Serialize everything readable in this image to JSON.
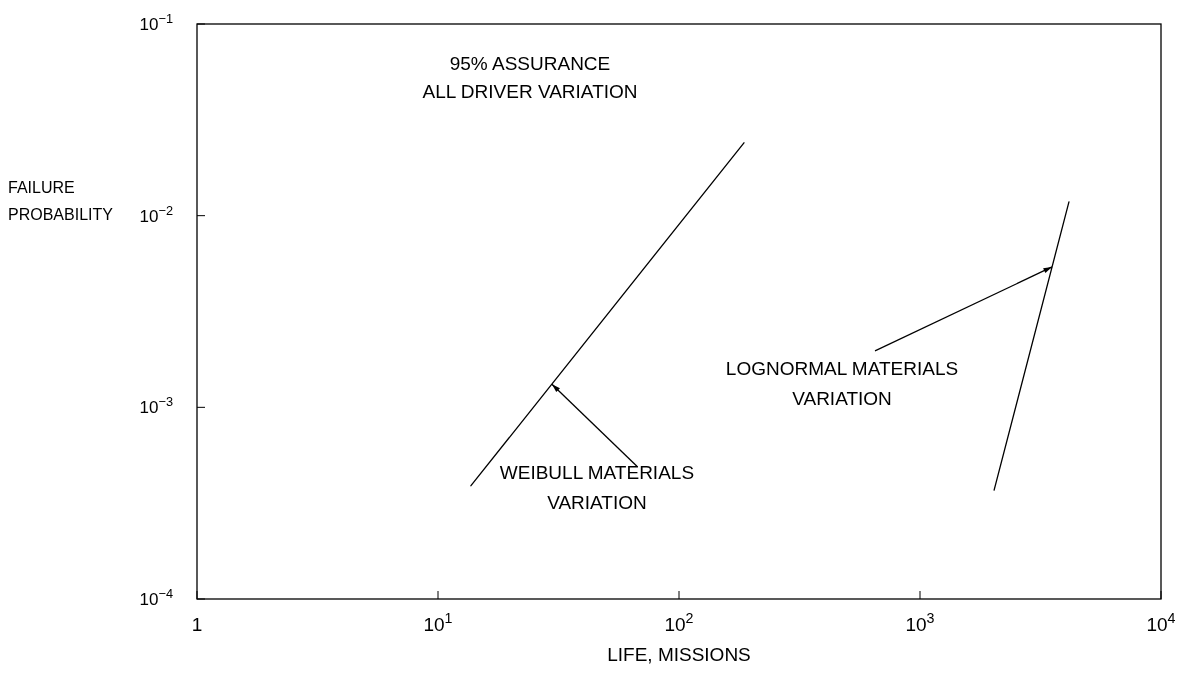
{
  "chart_data": {
    "type": "line",
    "title": "95% ASSURANCE\nALL DRIVER VARIATION",
    "xlabel": "LIFE, MISSIONS",
    "ylabel": "FAILURE\nPROBABILITY",
    "log": "xy",
    "xlim": [
      1,
      10000
    ],
    "ylim": [
      0.0001,
      0.1
    ],
    "xticks": [
      {
        "value": 1,
        "label": "1"
      },
      {
        "value": 10,
        "label": "10$^{1}$"
      },
      {
        "value": 100,
        "label": "10$^{2}$"
      },
      {
        "value": 1000,
        "label": "10$^{3}$"
      },
      {
        "value": 10000,
        "label": "10$^{4}$"
      }
    ],
    "yticks": [
      {
        "value": 0.0001,
        "label": "10$^{−4}$"
      },
      {
        "value": 0.001,
        "label": "10$^{−3}$"
      },
      {
        "value": 0.01,
        "label": "10$^{−2}$"
      },
      {
        "value": 0.1,
        "label": "10$^{−1}$"
      }
    ],
    "grid": false,
    "series": [
      {
        "color": "#000000",
        "x": [
          13.7,
          186
        ],
        "values": [
          0.00039,
          0.024
        ]
      },
      {
        "color": "#000000",
        "x": [
          2030,
          4150
        ],
        "values": [
          0.00037,
          0.0118
        ]
      }
    ],
    "annotations": [
      {
        "text": "WEIBULL MATERIALS\nVARIATION",
        "x": 29.7,
        "y": 0.00132
      },
      {
        "text": "LOGNORMAL MATERIALS\nVARIATION",
        "x": 3530,
        "y": 0.0054
      }
    ]
  }
}
